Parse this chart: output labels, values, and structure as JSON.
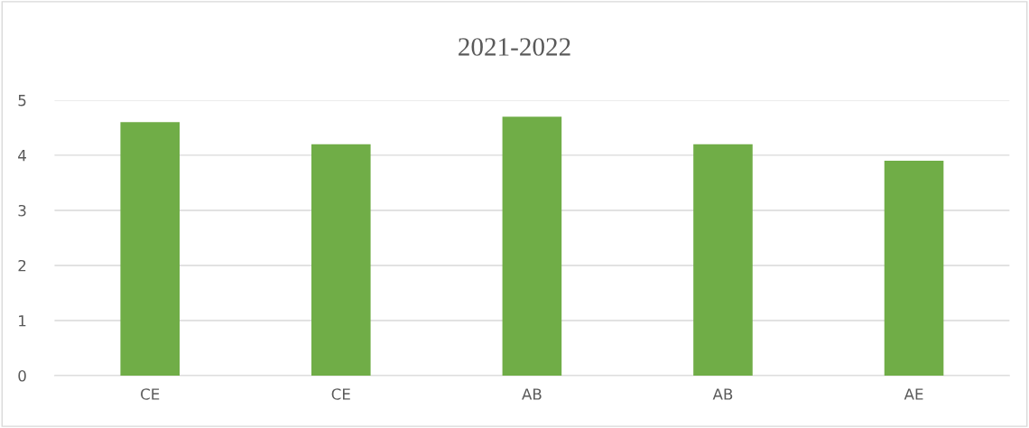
{
  "chart_data": {
    "type": "bar",
    "title": "2021-2022",
    "categories": [
      "CE",
      "CE",
      "AB",
      "AB",
      "AE"
    ],
    "values": [
      4.6,
      4.2,
      4.7,
      4.2,
      3.9
    ],
    "color": "#70ad47",
    "ylim": [
      0,
      5
    ],
    "yticks": [
      0,
      1,
      2,
      3,
      4,
      5
    ],
    "grid": "y",
    "legend": false
  }
}
